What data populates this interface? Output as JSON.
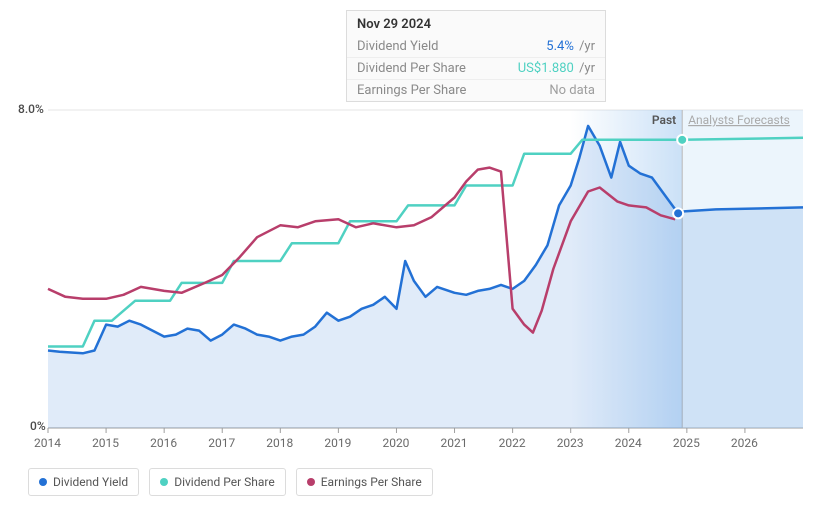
{
  "chart": {
    "type": "line",
    "background_color": "#ffffff",
    "line_width": 2.5,
    "ylim": [
      0,
      8.0
    ],
    "yticks": [
      0,
      8.0
    ],
    "ytick_labels": [
      "0%",
      "8.0%"
    ],
    "xlim": [
      2014,
      2027
    ],
    "xticks": [
      2014,
      2015,
      2016,
      2017,
      2018,
      2019,
      2020,
      2021,
      2022,
      2023,
      2024,
      2025,
      2026
    ],
    "grid_color": "#e5e5e5",
    "axis_color": "#9e9e9e",
    "forecast_start_year": 2024.92,
    "marker_year": 2024.85,
    "past_shade_start": 2023.0,
    "past_label": "Past",
    "future_label": "Analysts Forecasts",
    "tooltip": {
      "title": "Nov 29 2024",
      "rows": [
        {
          "label": "Dividend Yield",
          "value": "5.4%",
          "value_color": "#2371d5",
          "unit": "/yr"
        },
        {
          "label": "Dividend Per Share",
          "value": "US$1.880",
          "value_color": "#4fd1c2",
          "unit": "/yr"
        },
        {
          "label": "Earnings Per Share",
          "value": "No data",
          "value_color": "#9e9e9e",
          "unit": ""
        }
      ]
    },
    "series": {
      "dividend_yield": {
        "label": "Dividend Yield",
        "color": "#2371d5",
        "fill_color": "rgba(35,113,213,0.14)",
        "has_area": true,
        "data": [
          [
            2014.0,
            1.95
          ],
          [
            2014.2,
            1.92
          ],
          [
            2014.4,
            1.9
          ],
          [
            2014.6,
            1.88
          ],
          [
            2014.8,
            1.95
          ],
          [
            2015.0,
            2.6
          ],
          [
            2015.2,
            2.55
          ],
          [
            2015.4,
            2.7
          ],
          [
            2015.6,
            2.6
          ],
          [
            2015.8,
            2.45
          ],
          [
            2016.0,
            2.3
          ],
          [
            2016.2,
            2.35
          ],
          [
            2016.4,
            2.5
          ],
          [
            2016.6,
            2.45
          ],
          [
            2016.8,
            2.2
          ],
          [
            2017.0,
            2.35
          ],
          [
            2017.2,
            2.6
          ],
          [
            2017.4,
            2.5
          ],
          [
            2017.6,
            2.35
          ],
          [
            2017.8,
            2.3
          ],
          [
            2018.0,
            2.2
          ],
          [
            2018.2,
            2.3
          ],
          [
            2018.4,
            2.35
          ],
          [
            2018.6,
            2.55
          ],
          [
            2018.8,
            2.9
          ],
          [
            2019.0,
            2.7
          ],
          [
            2019.2,
            2.8
          ],
          [
            2019.4,
            3.0
          ],
          [
            2019.6,
            3.1
          ],
          [
            2019.8,
            3.3
          ],
          [
            2020.0,
            3.0
          ],
          [
            2020.15,
            4.2
          ],
          [
            2020.3,
            3.7
          ],
          [
            2020.5,
            3.3
          ],
          [
            2020.7,
            3.55
          ],
          [
            2021.0,
            3.4
          ],
          [
            2021.2,
            3.35
          ],
          [
            2021.4,
            3.45
          ],
          [
            2021.6,
            3.5
          ],
          [
            2021.8,
            3.6
          ],
          [
            2022.0,
            3.5
          ],
          [
            2022.2,
            3.7
          ],
          [
            2022.4,
            4.1
          ],
          [
            2022.6,
            4.6
          ],
          [
            2022.8,
            5.6
          ],
          [
            2023.0,
            6.1
          ],
          [
            2023.15,
            6.8
          ],
          [
            2023.3,
            7.6
          ],
          [
            2023.5,
            7.1
          ],
          [
            2023.7,
            6.3
          ],
          [
            2023.85,
            7.2
          ],
          [
            2024.0,
            6.6
          ],
          [
            2024.2,
            6.4
          ],
          [
            2024.4,
            6.3
          ],
          [
            2024.6,
            5.9
          ],
          [
            2024.85,
            5.4
          ],
          [
            2024.95,
            5.45
          ],
          [
            2025.5,
            5.5
          ],
          [
            2027.0,
            5.55
          ]
        ]
      },
      "dividend_per_share": {
        "label": "Dividend Per Share",
        "color": "#4fd1c2",
        "has_area": false,
        "marker_at_forecast": true,
        "data": [
          [
            2014.0,
            2.05
          ],
          [
            2014.6,
            2.05
          ],
          [
            2014.8,
            2.7
          ],
          [
            2015.1,
            2.7
          ],
          [
            2015.5,
            3.2
          ],
          [
            2016.1,
            3.2
          ],
          [
            2016.3,
            3.65
          ],
          [
            2017.0,
            3.65
          ],
          [
            2017.2,
            4.2
          ],
          [
            2018.0,
            4.2
          ],
          [
            2018.2,
            4.65
          ],
          [
            2019.0,
            4.65
          ],
          [
            2019.2,
            5.2
          ],
          [
            2020.0,
            5.2
          ],
          [
            2020.2,
            5.6
          ],
          [
            2021.0,
            5.6
          ],
          [
            2021.2,
            6.1
          ],
          [
            2022.0,
            6.1
          ],
          [
            2022.2,
            6.9
          ],
          [
            2023.0,
            6.9
          ],
          [
            2023.2,
            7.25
          ],
          [
            2024.92,
            7.25
          ],
          [
            2027.0,
            7.3
          ]
        ]
      },
      "earnings_per_share": {
        "label": "Earnings Per Share",
        "color": "#b83e6b",
        "has_area": false,
        "data": [
          [
            2014.0,
            3.5
          ],
          [
            2014.3,
            3.3
          ],
          [
            2014.6,
            3.25
          ],
          [
            2015.0,
            3.25
          ],
          [
            2015.3,
            3.35
          ],
          [
            2015.6,
            3.55
          ],
          [
            2016.0,
            3.45
          ],
          [
            2016.3,
            3.4
          ],
          [
            2016.7,
            3.65
          ],
          [
            2017.0,
            3.85
          ],
          [
            2017.3,
            4.3
          ],
          [
            2017.6,
            4.8
          ],
          [
            2018.0,
            5.1
          ],
          [
            2018.3,
            5.05
          ],
          [
            2018.6,
            5.2
          ],
          [
            2019.0,
            5.25
          ],
          [
            2019.3,
            5.05
          ],
          [
            2019.6,
            5.15
          ],
          [
            2020.0,
            5.05
          ],
          [
            2020.3,
            5.1
          ],
          [
            2020.6,
            5.3
          ],
          [
            2021.0,
            5.8
          ],
          [
            2021.2,
            6.2
          ],
          [
            2021.4,
            6.5
          ],
          [
            2021.6,
            6.55
          ],
          [
            2021.8,
            6.45
          ],
          [
            2022.0,
            3.0
          ],
          [
            2022.2,
            2.6
          ],
          [
            2022.35,
            2.4
          ],
          [
            2022.5,
            2.95
          ],
          [
            2022.7,
            4.0
          ],
          [
            2023.0,
            5.2
          ],
          [
            2023.3,
            5.95
          ],
          [
            2023.5,
            6.05
          ],
          [
            2023.8,
            5.7
          ],
          [
            2024.0,
            5.6
          ],
          [
            2024.3,
            5.55
          ],
          [
            2024.55,
            5.35
          ],
          [
            2024.8,
            5.25
          ]
        ]
      }
    },
    "legend_font_size": 12
  }
}
